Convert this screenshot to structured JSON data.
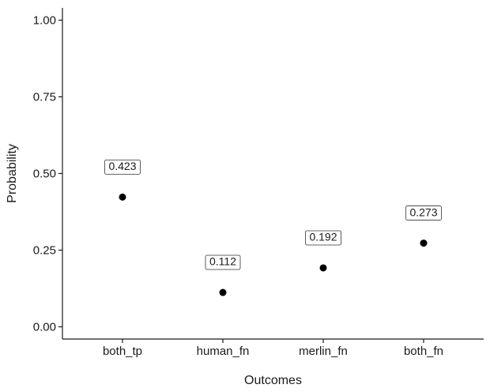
{
  "chart_data": {
    "type": "scatter",
    "categories": [
      "both_tp",
      "human_fn",
      "merlin_fn",
      "both_fn"
    ],
    "values": [
      0.423,
      0.112,
      0.192,
      0.273
    ],
    "data_labels": [
      "0.423",
      "0.112",
      "0.192",
      "0.273"
    ],
    "title": "",
    "xlabel": "Outcomes",
    "ylabel": "Probability",
    "ylim": [
      -0.04,
      1.04
    ],
    "yticks": [
      0,
      0.25,
      0.5,
      0.75,
      1
    ],
    "ytick_labels": [
      "0.00",
      "0.25",
      "0.50",
      "0.75",
      "1.00"
    ],
    "grid": false,
    "legend": "none",
    "point_color": "#000000"
  }
}
